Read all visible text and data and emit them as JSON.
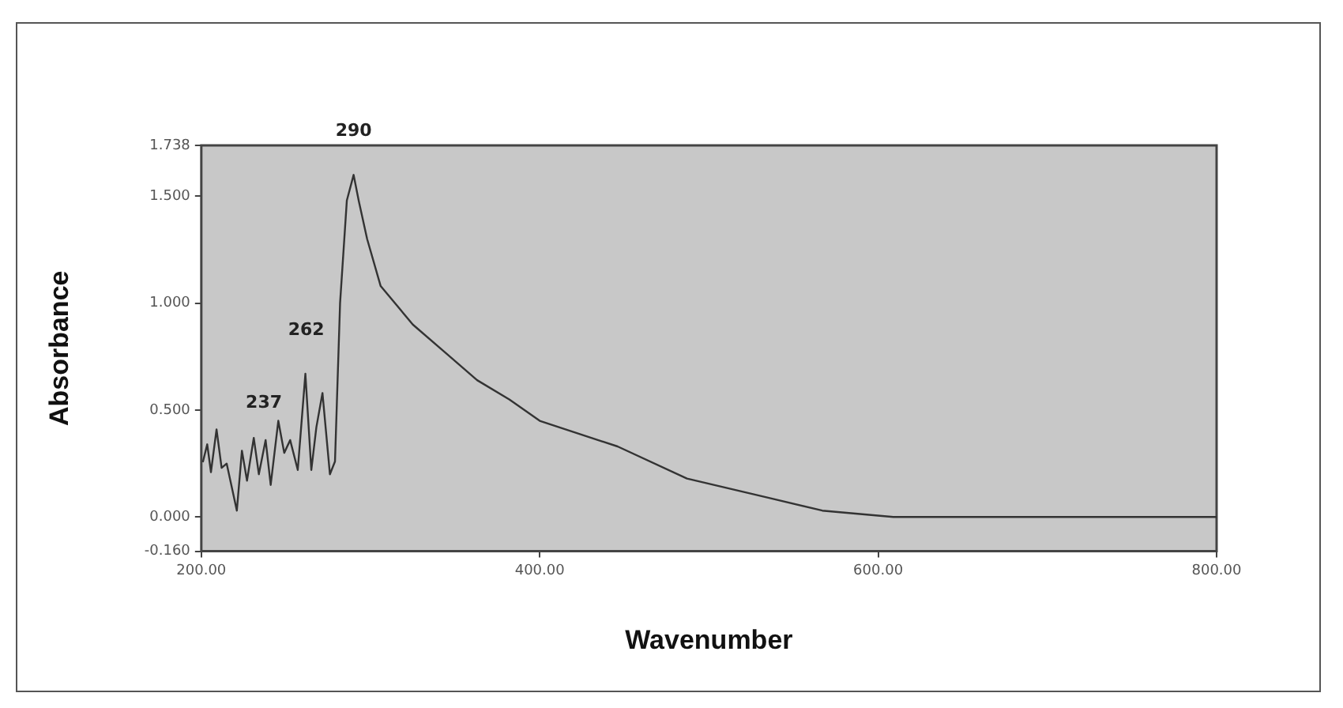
{
  "chart_data": {
    "type": "line",
    "xlabel": "Wavenumber",
    "ylabel": "Absorbance",
    "xlim": [
      200,
      800
    ],
    "ylim": [
      -0.16,
      1.738
    ],
    "xticks": [
      {
        "value": 200,
        "label": "200.00"
      },
      {
        "value": 400,
        "label": "400.00"
      },
      {
        "value": 600,
        "label": "600.00"
      },
      {
        "value": 800,
        "label": "800.00"
      }
    ],
    "yticks": [
      {
        "value": -0.16,
        "label": "-0.160"
      },
      {
        "value": 0,
        "label": "0.000"
      },
      {
        "value": 0.5,
        "label": "0.500"
      },
      {
        "value": 1,
        "label": "1.000"
      },
      {
        "value": 1.5,
        "label": "1.500"
      },
      {
        "value": 1.738,
        "label": "1.738"
      }
    ],
    "grid": false,
    "legend": false,
    "marker": "none",
    "line_style": "solid",
    "series": [
      {
        "color": "#333333",
        "x": [
          201,
          203.5,
          205.7,
          209,
          212,
          215,
          218,
          221,
          224,
          227,
          231,
          234,
          238,
          241,
          245.5,
          249,
          252.5,
          257,
          261.5,
          265,
          268,
          271.6,
          276,
          279,
          282,
          286,
          290,
          293,
          298,
          306,
          325,
          344,
          363,
          382,
          400,
          446,
          487,
          535,
          567,
          609,
          700,
          800
        ],
        "values": [
          0.26,
          0.34,
          0.21,
          0.41,
          0.23,
          0.25,
          0.14,
          0.03,
          0.31,
          0.17,
          0.37,
          0.2,
          0.36,
          0.15,
          0.45,
          0.3,
          0.36,
          0.22,
          0.67,
          0.22,
          0.42,
          0.58,
          0.2,
          0.26,
          1.0,
          1.48,
          1.6,
          1.48,
          1.3,
          1.08,
          0.9,
          0.77,
          0.64,
          0.55,
          0.45,
          0.33,
          0.18,
          0.09,
          0.03,
          0.0,
          0.0,
          0.0
        ]
      }
    ],
    "annotations": [
      {
        "text": "290",
        "x": 290,
        "y": 1.6
      },
      {
        "text": "262",
        "x": 262,
        "y": 0.67
      },
      {
        "text": "237",
        "x": 237,
        "y": 0.33
      }
    ]
  }
}
